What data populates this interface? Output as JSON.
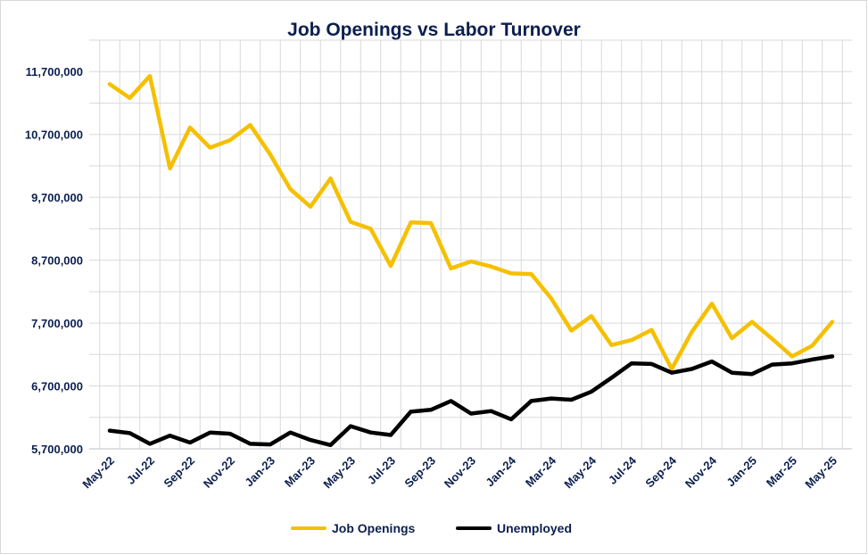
{
  "chart_data": {
    "type": "line",
    "title": "Job Openings vs Labor Turnover",
    "xlabel": "",
    "ylabel": "",
    "ylim": [
      5700000,
      12200000
    ],
    "yticks": [
      5700000,
      6700000,
      7700000,
      8700000,
      9700000,
      10700000,
      11700000
    ],
    "ytick_labels": [
      "5,700,000",
      "6,700,000",
      "7,700,000",
      "8,700,000",
      "9,700,000",
      "10,700,000",
      "11,700,000"
    ],
    "x": [
      "May-22",
      "Jun-22",
      "Jul-22",
      "Aug-22",
      "Sep-22",
      "Oct-22",
      "Nov-22",
      "Dec-22",
      "Jan-23",
      "Feb-23",
      "Mar-23",
      "Apr-23",
      "May-23",
      "Jun-23",
      "Jul-23",
      "Aug-23",
      "Sep-23",
      "Oct-23",
      "Nov-23",
      "Dec-23",
      "Jan-24",
      "Feb-24",
      "Mar-24",
      "Apr-24",
      "May-24",
      "Jun-24",
      "Jul-24",
      "Aug-24",
      "Sep-24",
      "Oct-24",
      "Nov-24",
      "Dec-24",
      "Jan-25",
      "Feb-25",
      "Mar-25",
      "Apr-25",
      "May-25"
    ],
    "xtick_labels": [
      "May-22",
      "Jul-22",
      "Sep-22",
      "Nov-22",
      "Jan-23",
      "Mar-23",
      "May-23",
      "Jul-23",
      "Sep-23",
      "Nov-23",
      "Jan-24",
      "Mar-24",
      "May-24",
      "Jul-24",
      "Sep-24",
      "Nov-24",
      "Jan-25",
      "Mar-25",
      "May-25"
    ],
    "series": [
      {
        "name": "Job Openings",
        "color": "#f5c000",
        "values": [
          11500000,
          11280000,
          11630000,
          10160000,
          10810000,
          10490000,
          10610000,
          10850000,
          10380000,
          9830000,
          9550000,
          10000000,
          9310000,
          9200000,
          8610000,
          9300000,
          9290000,
          8570000,
          8680000,
          8600000,
          8490000,
          8480000,
          8090000,
          7580000,
          7810000,
          7350000,
          7430000,
          7590000,
          6970000,
          7560000,
          8010000,
          7460000,
          7720000,
          7450000,
          7170000,
          7340000,
          7720000
        ]
      },
      {
        "name": "Unemployed",
        "color": "#000000",
        "values": [
          5990000,
          5950000,
          5780000,
          5910000,
          5800000,
          5960000,
          5940000,
          5780000,
          5770000,
          5960000,
          5840000,
          5760000,
          6060000,
          5960000,
          5920000,
          6290000,
          6320000,
          6460000,
          6260000,
          6300000,
          6170000,
          6460000,
          6500000,
          6480000,
          6610000,
          6830000,
          7060000,
          7050000,
          6910000,
          6970000,
          7090000,
          6910000,
          6890000,
          7040000,
          7060000,
          7120000,
          7170000
        ]
      }
    ],
    "grid": true,
    "grid_color": "#d9d9d9",
    "axis_label_color": "#0b1f4f",
    "legend_position": "bottom"
  }
}
